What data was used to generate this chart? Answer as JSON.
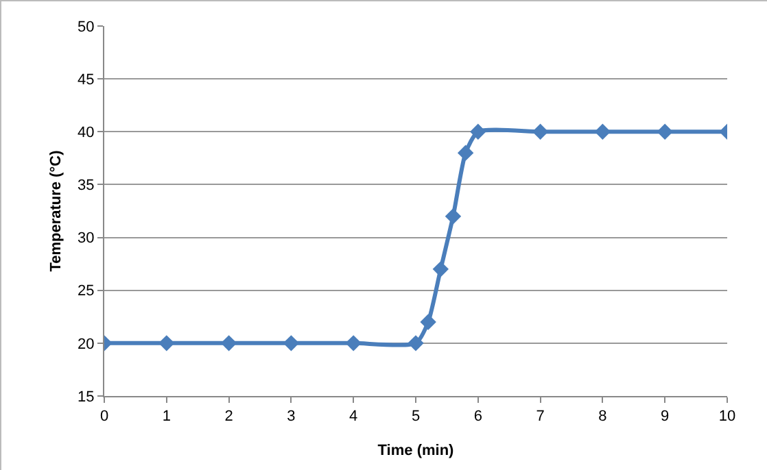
{
  "chart_data": {
    "type": "line",
    "xlabel": "Time (min)",
    "ylabel": "Temperature (°C)",
    "x": [
      0,
      1,
      2,
      3,
      4,
      5,
      5.2,
      5.4,
      5.6,
      5.8,
      6,
      7,
      8,
      9,
      10
    ],
    "series": [
      {
        "color": "#4a7ebb",
        "values": [
          20,
          20,
          20,
          20,
          20,
          20,
          22,
          27,
          32,
          38,
          40,
          40,
          40,
          40,
          40
        ]
      }
    ],
    "xlim": [
      0,
      10
    ],
    "xticks": [
      0,
      1,
      2,
      3,
      4,
      5,
      6,
      7,
      8,
      9,
      10
    ],
    "ylim": [
      15,
      50
    ],
    "yticks": [
      15,
      20,
      25,
      30,
      35,
      40,
      45,
      50
    ],
    "grid": "y",
    "legend": false,
    "marker": "diamond",
    "line_style": "solid"
  }
}
